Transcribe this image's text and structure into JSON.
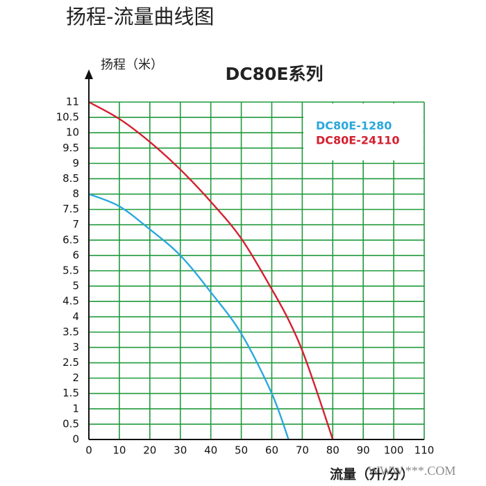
{
  "header": {
    "title": "扬程-流量曲线图"
  },
  "chart_data": {
    "type": "line",
    "title": "DC80E系列",
    "y_label": "扬程（米）",
    "x_label": "流量（升/分）",
    "watermark": "WWW.***.COM",
    "x": [
      0,
      10,
      20,
      30,
      40,
      50,
      60,
      65.5,
      70,
      75,
      80
    ],
    "series": [
      {
        "name": "DC80E-1280",
        "color": "#29a8dc",
        "values": [
          8,
          7.6,
          6.85,
          6,
          4.8,
          3.45,
          1.5,
          0,
          null,
          null,
          null
        ]
      },
      {
        "name": "DC80E-24110",
        "color": "#d42030",
        "values": [
          11,
          10.45,
          9.7,
          8.8,
          7.75,
          6.55,
          4.9,
          3.9,
          2.9,
          1.5,
          0
        ]
      }
    ],
    "xlim": [
      0,
      110
    ],
    "xticks": [
      0,
      10,
      20,
      30,
      40,
      50,
      60,
      70,
      80,
      90,
      100,
      110
    ],
    "ylim": [
      0,
      11
    ],
    "yticks": [
      0,
      0.5,
      1,
      1.5,
      2,
      2.5,
      3,
      3.5,
      4,
      4.5,
      5,
      5.5,
      6,
      6.5,
      7,
      7.5,
      8,
      8.5,
      9,
      9.5,
      10,
      10.5,
      11
    ],
    "grid": true,
    "grid_color": "#1f9a3a"
  }
}
